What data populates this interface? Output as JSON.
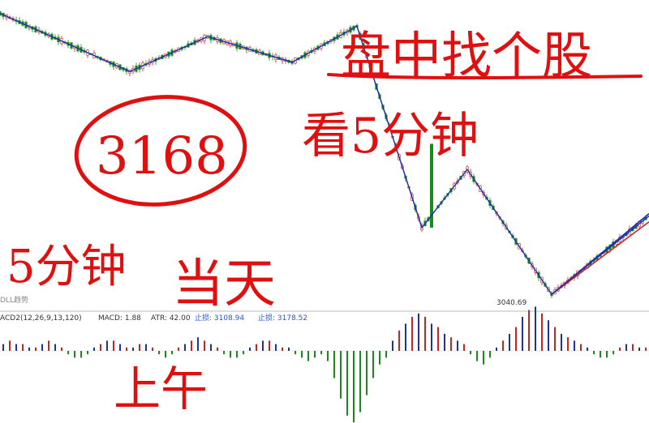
{
  "chart_data": {
    "type": "candlestick",
    "price_annotation": {
      "label": "3040.69",
      "value": 3040.69
    },
    "zigzag_points": [
      {
        "i": 0,
        "v": 3282
      },
      {
        "i": 20,
        "v": 3232
      },
      {
        "i": 32,
        "v": 3262
      },
      {
        "i": 45,
        "v": 3240
      },
      {
        "i": 55,
        "v": 3271
      },
      {
        "i": 65,
        "v": 3098
      },
      {
        "i": 72,
        "v": 3148
      },
      {
        "i": 85,
        "v": 3040.69
      },
      {
        "i": 100,
        "v": 3108
      }
    ],
    "trend_lines": [
      {
        "color": "#cc2222",
        "from": {
          "i": 85,
          "v": 3040.69
        },
        "to": {
          "i": 100,
          "v": 3103
        }
      },
      {
        "color": "#1a33aa",
        "from": {
          "i": 85,
          "v": 3040.69
        },
        "to": {
          "i": 100,
          "v": 3110
        }
      }
    ],
    "indicator": {
      "header_prefix": "ACD2(12,26,9,13,120)",
      "macd_label": "MACD: 1.88",
      "atr_label": "ATR: 42.00",
      "stop_label": "止损: 3108.94",
      "take_label": "止损: 3178.52",
      "histogram": [
        2,
        3,
        2,
        2,
        1,
        1,
        2,
        3,
        2,
        1,
        -1,
        -2,
        -2,
        -1,
        1,
        2,
        3,
        3,
        2,
        1,
        1,
        2,
        2,
        1,
        -1,
        -2,
        -1,
        1,
        2,
        3,
        4,
        3,
        2,
        1,
        -1,
        -2,
        -2,
        -1,
        1,
        2,
        3,
        3,
        2,
        1,
        1,
        -1,
        -2,
        -3,
        -2,
        -1,
        -3,
        -8,
        -14,
        -19,
        -21,
        -18,
        -13,
        -8,
        -4,
        -2,
        3,
        6,
        8,
        10,
        11,
        10,
        8,
        7,
        5,
        4,
        3,
        2,
        -1,
        -3,
        -4,
        -2,
        1,
        3,
        5,
        7,
        10,
        12,
        13,
        11,
        9,
        7,
        5,
        4,
        3,
        2,
        1,
        -1,
        -2,
        -2,
        -1,
        1,
        2,
        2,
        1,
        1,
        1
      ]
    },
    "legend_colors": {
      "up": "#cc2222",
      "down": "#1a8a1a",
      "zigzag": "#1a33aa"
    }
  },
  "overlay_left_label": "DLL趋势",
  "annotations": {
    "top_right_line1": "盘中找个股",
    "top_right_line2": "看5分钟",
    "circled_text": "3168",
    "bottom_left_a": "5分钟",
    "bottom_left_b": "当天",
    "bottom_mid": "上午"
  }
}
